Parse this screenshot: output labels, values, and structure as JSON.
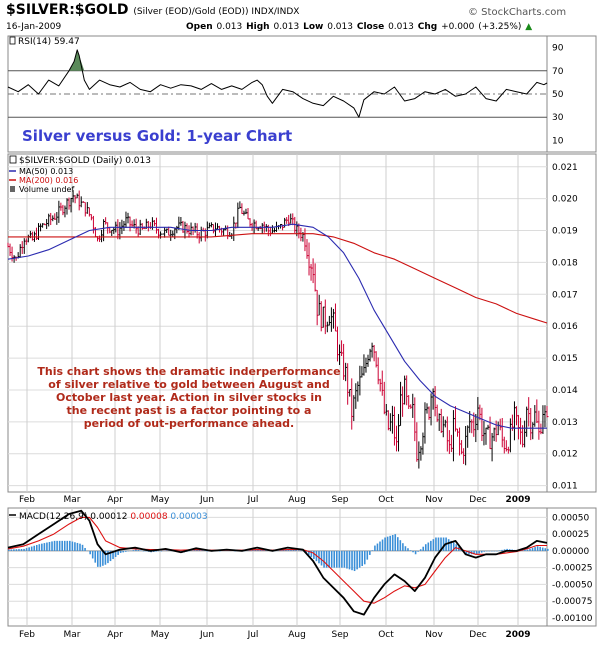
{
  "header": {
    "symbol": "$SILVER:$GOLD",
    "description": "(Silver (EOD)/Gold (EOD))  INDX/INDX",
    "date": "16-Jan-2009",
    "open_label": "Open",
    "open": "0.013",
    "high_label": "High",
    "high": "0.013",
    "low_label": "Low",
    "low": "0.013",
    "close_label": "Close",
    "close": "0.013",
    "chg_label": "Chg",
    "chg": "+0.000 (+3.25%)",
    "chg_arrow": "▲",
    "brand": "© StockCharts.com"
  },
  "colors": {
    "price_up": "#000000",
    "price_down": "#cc0033",
    "ma50": "#2b2bb0",
    "ma200": "#cc1111",
    "macd": "#000000",
    "signal": "#dd1111",
    "histogram": "#3a8fd8",
    "rsi_overbought_fill": "#5a8a5a",
    "rsi_oversold_fill": "#a86a6a",
    "title_overlay": "#3a3fcf",
    "annotation": "#b02a1a"
  },
  "chart_data": [
    {
      "type": "line",
      "name": "rsi-panel",
      "legend": "RSI(14) 59.47",
      "ylim": [
        0,
        100
      ],
      "yticks": [
        "90",
        "70",
        "50",
        "30",
        "10"
      ],
      "reference_levels": [
        70,
        50,
        30
      ],
      "last_value": 59.47,
      "overlay_title": "Silver versus Gold: 1-year Chart",
      "x": [
        0,
        10,
        20,
        30,
        40,
        50,
        60,
        65,
        68,
        70,
        75,
        80,
        90,
        100,
        110,
        120,
        130,
        140,
        150,
        160,
        170,
        180,
        190,
        200,
        210,
        220,
        230,
        240,
        245,
        250,
        255,
        260,
        270,
        280,
        290,
        300,
        310,
        320,
        330,
        340,
        345,
        350,
        360,
        370,
        380,
        390,
        400,
        410,
        420,
        430,
        440,
        450,
        460,
        470,
        480,
        490,
        500,
        510,
        520,
        527,
        530
      ],
      "y": [
        56,
        52,
        58,
        50,
        62,
        57,
        70,
        78,
        88,
        83,
        62,
        54,
        62,
        58,
        56,
        60,
        54,
        52,
        58,
        55,
        58,
        57,
        54,
        59,
        54,
        57,
        54,
        60,
        62,
        58,
        48,
        42,
        54,
        52,
        46,
        42,
        40,
        48,
        44,
        38,
        30,
        45,
        52,
        50,
        56,
        44,
        46,
        52,
        50,
        54,
        48,
        50,
        56,
        46,
        44,
        54,
        52,
        50,
        60,
        58,
        59.47
      ]
    },
    {
      "type": "line",
      "name": "price-panel",
      "legend": [
        "$SILVER:$GOLD (Daily) 0.013",
        "MA(50) 0.013",
        "MA(200) 0.016",
        "Volume undef"
      ],
      "ylim": [
        0.011,
        0.021
      ],
      "yticks": [
        "0.021",
        "0.020",
        "0.019",
        "0.018",
        "0.017",
        "0.016",
        "0.015",
        "0.014",
        "0.013",
        "0.012",
        "0.011"
      ],
      "x_ticks": [
        "Feb",
        "Mar",
        "Apr",
        "May",
        "Jun",
        "Jul",
        "Aug",
        "Sep",
        "Oct",
        "Nov",
        "Dec",
        "2009"
      ],
      "x": [
        0,
        8,
        16,
        24,
        32,
        40,
        48,
        56,
        64,
        70,
        76,
        82,
        88,
        94,
        100,
        108,
        116,
        124,
        132,
        140,
        148,
        156,
        164,
        172,
        180,
        188,
        196,
        204,
        212,
        220,
        228,
        236,
        244,
        250,
        256,
        262,
        268,
        276,
        284,
        292,
        296,
        300,
        304,
        308,
        312,
        316,
        320,
        326,
        332,
        338,
        344,
        350,
        354,
        358,
        362,
        366,
        370,
        374,
        378,
        382,
        386,
        390,
        394,
        398,
        402,
        406,
        410,
        414,
        418,
        422,
        426,
        430,
        434,
        438,
        442,
        446,
        450,
        454,
        458,
        462,
        466,
        470,
        474,
        478,
        482,
        486,
        490,
        494,
        498,
        502,
        506,
        510,
        514,
        518,
        522,
        526,
        530
      ],
      "close": [
        0.0185,
        0.0181,
        0.0188,
        0.0187,
        0.0191,
        0.0193,
        0.0195,
        0.0198,
        0.0201,
        0.0199,
        0.0197,
        0.0194,
        0.0187,
        0.0192,
        0.0191,
        0.019,
        0.0193,
        0.0191,
        0.019,
        0.0192,
        0.019,
        0.0189,
        0.0191,
        0.0191,
        0.019,
        0.0189,
        0.019,
        0.0191,
        0.019,
        0.019,
        0.0197,
        0.0193,
        0.0192,
        0.0192,
        0.019,
        0.019,
        0.0191,
        0.0194,
        0.019,
        0.0188,
        0.0182,
        0.0178,
        0.0166,
        0.0163,
        0.0162,
        0.0164,
        0.0161,
        0.015,
        0.0145,
        0.0133,
        0.0141,
        0.0145,
        0.0152,
        0.0156,
        0.015,
        0.0142,
        0.0133,
        0.0128,
        0.013,
        0.0122,
        0.0137,
        0.014,
        0.0132,
        0.0133,
        0.0121,
        0.0125,
        0.0131,
        0.0134,
        0.0143,
        0.0128,
        0.013,
        0.0127,
        0.0121,
        0.0128,
        0.0125,
        0.012,
        0.0124,
        0.013,
        0.0129,
        0.0135,
        0.0128,
        0.0125,
        0.0125,
        0.0126,
        0.0129,
        0.0124,
        0.0123,
        0.0126,
        0.0131,
        0.0127,
        0.0124,
        0.0135,
        0.013,
        0.0132,
        0.0126,
        0.0134,
        0.0129
      ],
      "ma50_x": [
        0,
        20,
        40,
        60,
        80,
        100,
        120,
        140,
        160,
        180,
        200,
        220,
        240,
        260,
        280,
        300,
        315,
        330,
        345,
        360,
        375,
        390,
        405,
        420,
        435,
        450,
        465,
        480,
        495,
        510,
        530
      ],
      "ma50": [
        0.0181,
        0.0182,
        0.0184,
        0.0187,
        0.019,
        0.0191,
        0.0191,
        0.0191,
        0.0191,
        0.019,
        0.019,
        0.0191,
        0.0191,
        0.0191,
        0.0192,
        0.0191,
        0.0188,
        0.0183,
        0.0175,
        0.0165,
        0.0157,
        0.0149,
        0.0143,
        0.0138,
        0.0135,
        0.0133,
        0.0131,
        0.0129,
        0.0128,
        0.0128,
        0.0128
      ],
      "ma200_x": [
        0,
        40,
        80,
        120,
        160,
        200,
        240,
        280,
        300,
        320,
        340,
        360,
        380,
        400,
        420,
        440,
        460,
        480,
        500,
        520,
        530
      ],
      "ma200": [
        0.0188,
        0.0188,
        0.0188,
        0.0188,
        0.0188,
        0.0188,
        0.0189,
        0.0189,
        0.0189,
        0.0188,
        0.0186,
        0.0183,
        0.0181,
        0.0178,
        0.0175,
        0.0172,
        0.0169,
        0.0167,
        0.0164,
        0.0162,
        0.0161
      ],
      "annotation": "This chart shows the dramatic inderperformance of silver relative to gold between August and October last year. Action in silver stocks in the recent past is a factor pointing to a period of out-performance ahead."
    },
    {
      "type": "line",
      "name": "macd-panel",
      "legend": [
        "MACD(12,26,9)",
        "0.00012",
        "0.00008",
        "0.00003"
      ],
      "ylim": [
        -0.0011,
        0.0007
      ],
      "yticks": [
        "0.00050",
        "0.00025",
        "0.00000",
        "-0.00025",
        "-0.00050",
        "-0.00075",
        "-0.00100"
      ],
      "x_ticks": [
        "Feb",
        "Mar",
        "Apr",
        "May",
        "Jun",
        "Jul",
        "Aug",
        "Sep",
        "Oct",
        "Nov",
        "Dec",
        "2009"
      ],
      "x": [
        0,
        15,
        30,
        45,
        60,
        72,
        80,
        88,
        96,
        110,
        125,
        140,
        155,
        170,
        185,
        200,
        215,
        230,
        245,
        260,
        275,
        290,
        300,
        310,
        320,
        330,
        340,
        350,
        360,
        370,
        380,
        390,
        400,
        410,
        420,
        430,
        440,
        450,
        460,
        470,
        480,
        490,
        500,
        510,
        520,
        530
      ],
      "macd": [
        5e-05,
        0.0001,
        0.00025,
        0.0004,
        0.00055,
        0.0006,
        0.00045,
        0.0001,
        -5e-05,
        2e-05,
        5e-05,
        0.0,
        3e-05,
        -2e-05,
        4e-05,
        0.0,
        2e-05,
        0.0,
        5e-05,
        0.0,
        5e-05,
        2e-05,
        -0.00015,
        -0.0004,
        -0.00055,
        -0.0007,
        -0.0009,
        -0.00095,
        -0.0007,
        -0.0005,
        -0.00035,
        -0.00045,
        -0.0006,
        -0.0004,
        -0.0001,
        0.0001,
        0.00015,
        -5e-05,
        -0.0001,
        -5e-05,
        -5e-05,
        0.0,
        0.0,
        5e-05,
        0.00015,
        0.00012
      ],
      "signal": [
        3e-05,
        7e-05,
        0.00015,
        0.00025,
        0.0004,
        0.0005,
        0.0005,
        0.00035,
        0.00015,
        5e-05,
        3e-05,
        2e-05,
        2e-05,
        1e-05,
        2e-05,
        1e-05,
        1e-05,
        1e-05,
        2e-05,
        1e-05,
        2e-05,
        2e-05,
        -3e-05,
        -0.00015,
        -0.0003,
        -0.00045,
        -0.0006,
        -0.00075,
        -0.00078,
        -0.0007,
        -0.0006,
        -0.00052,
        -0.00055,
        -0.0005,
        -0.0003,
        -0.0001,
        5e-05,
        0.0,
        -5e-05,
        -5e-05,
        -5e-05,
        -3e-05,
        -1e-05,
        3e-05,
        8e-05,
        8e-05
      ],
      "histogram": [
        2e-05,
        3e-05,
        0.0001,
        0.00015,
        0.00015,
        0.0001,
        -5e-05,
        -0.00025,
        -0.0002,
        -3e-05,
        2e-05,
        -2e-05,
        1e-05,
        -3e-05,
        2e-05,
        -1e-05,
        1e-05,
        -1e-05,
        3e-05,
        -1e-05,
        3e-05,
        0.0,
        -0.00012,
        -0.00025,
        -0.00025,
        -0.00025,
        -0.0003,
        -0.0002,
        8e-05,
        0.0002,
        0.00025,
        7e-05,
        -5e-05,
        0.0001,
        0.0002,
        0.0002,
        0.0001,
        -5e-05,
        -5e-05,
        0.0,
        0.0,
        3e-05,
        1e-05,
        2e-05,
        7e-05,
        3e-05
      ]
    }
  ]
}
